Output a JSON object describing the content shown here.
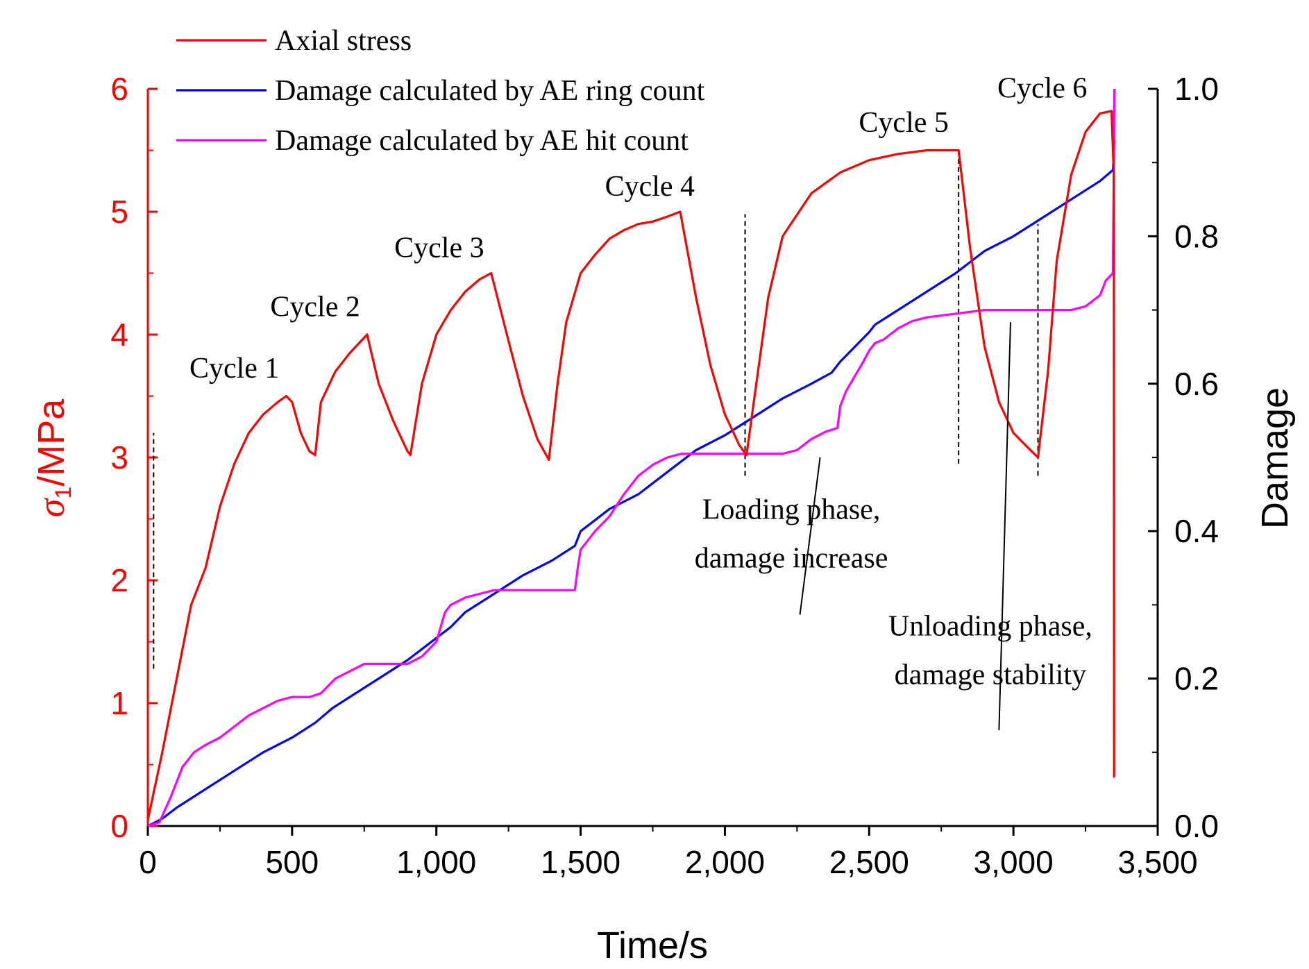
{
  "chart_data": {
    "type": "line",
    "xlabel": "Time/s",
    "ylabel_left_symbol": "σ",
    "ylabel_left_sub": "1",
    "ylabel_left_unit": "/MPa",
    "ylabel_right": "Damage",
    "xlim": [
      0,
      3500
    ],
    "ylim_left": [
      0,
      6
    ],
    "ylim_right": [
      0,
      1
    ],
    "x_ticks": [
      0,
      500,
      1000,
      1500,
      2000,
      2500,
      3000,
      3500
    ],
    "x_tick_labels": [
      "0",
      "500",
      "1,000",
      "1,500",
      "2,000",
      "2,500",
      "3,000",
      "3,500"
    ],
    "y_left_ticks": [
      0,
      1,
      2,
      3,
      4,
      5,
      6
    ],
    "y_left_tick_labels": [
      "0",
      "1",
      "2",
      "3",
      "4",
      "5",
      "6"
    ],
    "y_right_ticks": [
      0,
      0.2,
      0.4,
      0.6,
      0.8,
      1.0
    ],
    "y_right_tick_labels": [
      "0.0",
      "0.2",
      "0.4",
      "0.6",
      "0.8",
      "1.0"
    ],
    "legend_position": "top-left",
    "colors": {
      "stress": "#ff0000",
      "ring": "#0000ff",
      "hit": "#ff00ff",
      "axis_left": "#ff0000",
      "axis": "#000000"
    },
    "series": [
      {
        "name": "Axial stress",
        "axis": "left",
        "color": "#ff0000",
        "x": [
          0,
          50,
          100,
          150,
          200,
          250,
          300,
          350,
          400,
          450,
          480,
          500,
          530,
          560,
          580,
          600,
          650,
          700,
          760,
          800,
          850,
          900,
          910,
          950,
          1000,
          1050,
          1100,
          1150,
          1190,
          1250,
          1300,
          1350,
          1390,
          1420,
          1450,
          1500,
          1550,
          1600,
          1650,
          1700,
          1750,
          1800,
          1845,
          1900,
          1950,
          2000,
          2050,
          2075,
          2100,
          2150,
          2200,
          2300,
          2400,
          2500,
          2600,
          2700,
          2810,
          2850,
          2900,
          2950,
          3000,
          3050,
          3085,
          3120,
          3150,
          3200,
          3250,
          3300,
          3340,
          3348,
          3349,
          3350
        ],
        "y": [
          0.05,
          0.6,
          1.2,
          1.8,
          2.1,
          2.6,
          2.95,
          3.2,
          3.35,
          3.45,
          3.5,
          3.45,
          3.2,
          3.05,
          3.02,
          3.45,
          3.7,
          3.85,
          4.0,
          3.6,
          3.3,
          3.05,
          3.02,
          3.6,
          4.0,
          4.2,
          4.35,
          4.45,
          4.5,
          3.95,
          3.5,
          3.15,
          2.98,
          3.6,
          4.1,
          4.5,
          4.65,
          4.78,
          4.85,
          4.9,
          4.92,
          4.96,
          5.0,
          4.3,
          3.75,
          3.35,
          3.1,
          3.02,
          3.45,
          4.3,
          4.8,
          5.15,
          5.32,
          5.42,
          5.47,
          5.5,
          5.5,
          4.7,
          3.9,
          3.45,
          3.2,
          3.08,
          3.0,
          3.7,
          4.6,
          5.3,
          5.65,
          5.8,
          5.82,
          5.3,
          0.4,
          0.4
        ]
      },
      {
        "name": "Damage calculated by AE ring count",
        "axis": "right",
        "color": "#0000ff",
        "x": [
          0,
          50,
          100,
          200,
          300,
          400,
          500,
          580,
          640,
          700,
          800,
          900,
          1000,
          1050,
          1100,
          1200,
          1300,
          1400,
          1480,
          1500,
          1550,
          1600,
          1700,
          1800,
          1900,
          2000,
          2100,
          2200,
          2300,
          2370,
          2400,
          2450,
          2500,
          2520,
          2600,
          2700,
          2800,
          2900,
          3000,
          3100,
          3200,
          3300,
          3345,
          3350
        ],
        "y": [
          0,
          0.01,
          0.025,
          0.05,
          0.075,
          0.1,
          0.12,
          0.14,
          0.16,
          0.175,
          0.2,
          0.225,
          0.255,
          0.27,
          0.29,
          0.315,
          0.34,
          0.36,
          0.38,
          0.4,
          0.415,
          0.43,
          0.45,
          0.48,
          0.51,
          0.53,
          0.555,
          0.58,
          0.6,
          0.615,
          0.63,
          0.65,
          0.67,
          0.68,
          0.7,
          0.725,
          0.75,
          0.78,
          0.8,
          0.825,
          0.85,
          0.875,
          0.89,
          0.93
        ]
      },
      {
        "name": "Damage calculated by AE hit count",
        "axis": "right",
        "color": "#ff00ff",
        "x": [
          0,
          40,
          80,
          120,
          160,
          200,
          250,
          300,
          350,
          400,
          450,
          500,
          560,
          600,
          650,
          700,
          750,
          800,
          850,
          900,
          950,
          1000,
          1030,
          1050,
          1100,
          1150,
          1200,
          1250,
          1300,
          1400,
          1480,
          1490,
          1500,
          1550,
          1600,
          1650,
          1700,
          1750,
          1800,
          1850,
          1900,
          2000,
          2100,
          2200,
          2250,
          2300,
          2350,
          2390,
          2400,
          2420,
          2450,
          2480,
          2500,
          2520,
          2550,
          2600,
          2650,
          2700,
          2800,
          2900,
          3000,
          3100,
          3200,
          3250,
          3300,
          3320,
          3345,
          3350
        ],
        "y": [
          0,
          0.005,
          0.04,
          0.08,
          0.1,
          0.11,
          0.12,
          0.135,
          0.15,
          0.16,
          0.17,
          0.175,
          0.175,
          0.18,
          0.2,
          0.21,
          0.22,
          0.22,
          0.22,
          0.22,
          0.23,
          0.25,
          0.29,
          0.3,
          0.31,
          0.315,
          0.32,
          0.32,
          0.32,
          0.32,
          0.32,
          0.35,
          0.375,
          0.4,
          0.42,
          0.45,
          0.475,
          0.49,
          0.5,
          0.505,
          0.505,
          0.505,
          0.505,
          0.505,
          0.51,
          0.525,
          0.535,
          0.54,
          0.57,
          0.59,
          0.61,
          0.63,
          0.645,
          0.655,
          0.66,
          0.675,
          0.685,
          0.69,
          0.695,
          0.7,
          0.7,
          0.7,
          0.7,
          0.705,
          0.72,
          0.74,
          0.75,
          1.0
        ]
      }
    ],
    "cycle_labels": [
      {
        "text": "Cycle 1",
        "x": 300,
        "y": 3.65
      },
      {
        "text": "Cycle 2",
        "x": 580,
        "y": 4.15
      },
      {
        "text": "Cycle 3",
        "x": 1010,
        "y": 4.63
      },
      {
        "text": "Cycle 4",
        "x": 1740,
        "y": 5.13
      },
      {
        "text": "Cycle 5",
        "x": 2620,
        "y": 5.65
      },
      {
        "text": "Cycle 6",
        "x": 3100,
        "y": 5.93
      }
    ],
    "dashed_markers": [
      {
        "x": 20,
        "y1": 1.28,
        "y2": 3.2
      },
      {
        "x": 2070,
        "y1": 2.85,
        "y2": 4.98
      },
      {
        "x": 2810,
        "y1": 2.95,
        "y2": 5.5
      },
      {
        "x": 3085,
        "y1": 2.85,
        "y2": 4.9
      }
    ],
    "annotations": [
      {
        "lines": [
          "Loading phase,",
          "damage increase"
        ],
        "x": 2230,
        "y": 2.5,
        "pointer_from": [
          2260,
          1.72
        ],
        "pointer_to": [
          2330,
          3.0
        ]
      },
      {
        "lines": [
          "Unloading phase,",
          "damage stability"
        ],
        "x": 2920,
        "y": 1.55,
        "pointer_from": [
          2950,
          0.78
        ],
        "pointer_to": [
          2990,
          4.1
        ]
      }
    ]
  }
}
